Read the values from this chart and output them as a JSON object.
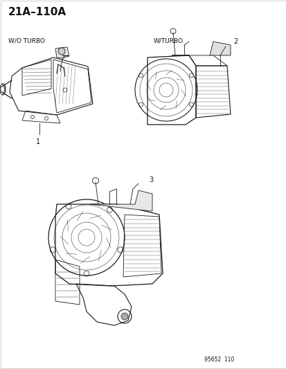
{
  "title": "21A–110A",
  "bg_color": "#f5f5f5",
  "border_color": "#cccccc",
  "line_color": "#1a1a1a",
  "gray_color": "#888888",
  "light_gray": "#dddddd",
  "font_color": "#111111",
  "title_fontsize": 11,
  "label_fontsize": 6.5,
  "number_fontsize": 7,
  "code_fontsize": 5.5,
  "diagram_code": "95652  110",
  "label_wo": "W/O TURBO",
  "label_w": "W/TURBO",
  "part1": "1",
  "part2": "2",
  "part3": "3"
}
